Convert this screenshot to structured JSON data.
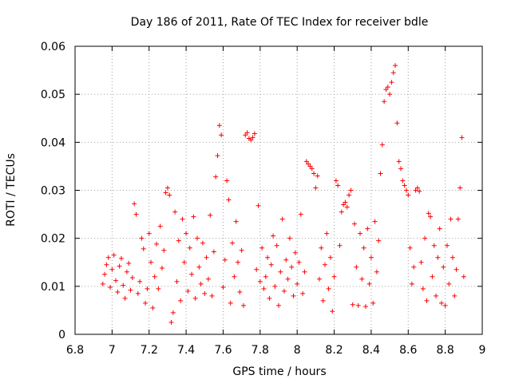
{
  "chart_data": {
    "type": "scatter",
    "title": "Day 186 of 2011, Rate Of TEC Index for receiver bdle",
    "xlabel": "GPS time / hours",
    "ylabel": "ROTI / TECUs",
    "xlim": [
      6.8,
      9.0
    ],
    "ylim": [
      0,
      0.06
    ],
    "xticks": [
      "6.8",
      "7",
      "7.2",
      "7.4",
      "7.6",
      "7.8",
      "8",
      "8.2",
      "8.4",
      "8.6",
      "8.8",
      "9"
    ],
    "xtick_values": [
      6.8,
      7.0,
      7.2,
      7.4,
      7.6,
      7.8,
      8.0,
      8.2,
      8.4,
      8.6,
      8.8,
      9.0
    ],
    "yticks": [
      "0",
      "0.01",
      "0.02",
      "0.03",
      "0.04",
      "0.05",
      "0.06"
    ],
    "ytick_values": [
      0,
      0.01,
      0.02,
      0.03,
      0.04,
      0.05,
      0.06
    ],
    "grid": true,
    "marker": "+",
    "color": "#ff0000",
    "series": [
      {
        "name": "ROTI",
        "points": [
          [
            6.95,
            0.0105
          ],
          [
            6.96,
            0.0125
          ],
          [
            6.97,
            0.0145
          ],
          [
            6.98,
            0.016
          ],
          [
            6.99,
            0.0098
          ],
          [
            7.0,
            0.0135
          ],
          [
            7.01,
            0.0165
          ],
          [
            7.02,
            0.0112
          ],
          [
            7.03,
            0.0088
          ],
          [
            7.04,
            0.0142
          ],
          [
            7.05,
            0.0158
          ],
          [
            7.06,
            0.0102
          ],
          [
            7.07,
            0.0075
          ],
          [
            7.08,
            0.013
          ],
          [
            7.09,
            0.0148
          ],
          [
            7.1,
            0.0092
          ],
          [
            7.11,
            0.0118
          ],
          [
            7.12,
            0.0272
          ],
          [
            7.13,
            0.025
          ],
          [
            7.14,
            0.0085
          ],
          [
            7.15,
            0.011
          ],
          [
            7.16,
            0.02
          ],
          [
            7.17,
            0.0178
          ],
          [
            7.18,
            0.0065
          ],
          [
            7.19,
            0.0095
          ],
          [
            7.2,
            0.021
          ],
          [
            7.21,
            0.015
          ],
          [
            7.22,
            0.0055
          ],
          [
            7.23,
            0.012
          ],
          [
            7.24,
            0.0188
          ],
          [
            7.25,
            0.0095
          ],
          [
            7.26,
            0.0225
          ],
          [
            7.27,
            0.0138
          ],
          [
            7.28,
            0.0175
          ],
          [
            7.29,
            0.0295
          ],
          [
            7.3,
            0.0305
          ],
          [
            7.31,
            0.029
          ],
          [
            7.32,
            0.0025
          ],
          [
            7.33,
            0.0045
          ],
          [
            7.34,
            0.0255
          ],
          [
            7.35,
            0.011
          ],
          [
            7.36,
            0.0195
          ],
          [
            7.37,
            0.007
          ],
          [
            7.38,
            0.024
          ],
          [
            7.39,
            0.015
          ],
          [
            7.4,
            0.021
          ],
          [
            7.41,
            0.009
          ],
          [
            7.42,
            0.018
          ],
          [
            7.43,
            0.0125
          ],
          [
            7.44,
            0.0245
          ],
          [
            7.45,
            0.0075
          ],
          [
            7.46,
            0.02
          ],
          [
            7.47,
            0.014
          ],
          [
            7.48,
            0.0105
          ],
          [
            7.49,
            0.019
          ],
          [
            7.5,
            0.0085
          ],
          [
            7.51,
            0.016
          ],
          [
            7.52,
            0.0115
          ],
          [
            7.53,
            0.0248
          ],
          [
            7.54,
            0.008
          ],
          [
            7.55,
            0.0172
          ],
          [
            7.56,
            0.0328
          ],
          [
            7.57,
            0.0372
          ],
          [
            7.58,
            0.0435
          ],
          [
            7.59,
            0.0415
          ],
          [
            7.6,
            0.0098
          ],
          [
            7.61,
            0.0155
          ],
          [
            7.62,
            0.032
          ],
          [
            7.63,
            0.028
          ],
          [
            7.64,
            0.0065
          ],
          [
            7.65,
            0.019
          ],
          [
            7.66,
            0.012
          ],
          [
            7.67,
            0.0235
          ],
          [
            7.68,
            0.015
          ],
          [
            7.69,
            0.0088
          ],
          [
            7.7,
            0.0175
          ],
          [
            7.71,
            0.006
          ],
          [
            7.72,
            0.0415
          ],
          [
            7.73,
            0.042
          ],
          [
            7.74,
            0.0408
          ],
          [
            7.75,
            0.0405
          ],
          [
            7.76,
            0.041
          ],
          [
            7.77,
            0.0418
          ],
          [
            7.78,
            0.0135
          ],
          [
            7.79,
            0.0268
          ],
          [
            7.8,
            0.011
          ],
          [
            7.81,
            0.018
          ],
          [
            7.82,
            0.0095
          ],
          [
            7.83,
            0.012
          ],
          [
            7.84,
            0.016
          ],
          [
            7.85,
            0.0075
          ],
          [
            7.86,
            0.0145
          ],
          [
            7.87,
            0.0205
          ],
          [
            7.88,
            0.01
          ],
          [
            7.89,
            0.0185
          ],
          [
            7.9,
            0.006
          ],
          [
            7.91,
            0.013
          ],
          [
            7.92,
            0.024
          ],
          [
            7.93,
            0.009
          ],
          [
            7.94,
            0.0155
          ],
          [
            7.95,
            0.0115
          ],
          [
            7.96,
            0.02
          ],
          [
            7.97,
            0.014
          ],
          [
            7.98,
            0.008
          ],
          [
            7.99,
            0.017
          ],
          [
            8.0,
            0.0105
          ],
          [
            8.01,
            0.015
          ],
          [
            8.02,
            0.025
          ],
          [
            8.03,
            0.0085
          ],
          [
            8.04,
            0.013
          ],
          [
            8.05,
            0.036
          ],
          [
            8.06,
            0.0355
          ],
          [
            8.07,
            0.035
          ],
          [
            8.08,
            0.0345
          ],
          [
            8.09,
            0.0335
          ],
          [
            8.1,
            0.0305
          ],
          [
            8.11,
            0.033
          ],
          [
            8.12,
            0.0115
          ],
          [
            8.13,
            0.018
          ],
          [
            8.14,
            0.007
          ],
          [
            8.15,
            0.0145
          ],
          [
            8.16,
            0.021
          ],
          [
            8.17,
            0.0095
          ],
          [
            8.18,
            0.016
          ],
          [
            8.19,
            0.0048
          ],
          [
            8.2,
            0.012
          ],
          [
            8.21,
            0.032
          ],
          [
            8.22,
            0.031
          ],
          [
            8.23,
            0.0185
          ],
          [
            8.24,
            0.0255
          ],
          [
            8.25,
            0.027
          ],
          [
            8.26,
            0.0275
          ],
          [
            8.27,
            0.0265
          ],
          [
            8.28,
            0.029
          ],
          [
            8.29,
            0.03
          ],
          [
            8.3,
            0.0062
          ],
          [
            8.31,
            0.023
          ],
          [
            8.32,
            0.014
          ],
          [
            8.33,
            0.006
          ],
          [
            8.34,
            0.021
          ],
          [
            8.35,
            0.0115
          ],
          [
            8.36,
            0.018
          ],
          [
            8.37,
            0.0058
          ],
          [
            8.38,
            0.022
          ],
          [
            8.39,
            0.0105
          ],
          [
            8.4,
            0.016
          ],
          [
            8.41,
            0.0065
          ],
          [
            8.42,
            0.0235
          ],
          [
            8.43,
            0.013
          ],
          [
            8.44,
            0.0195
          ],
          [
            8.45,
            0.0335
          ],
          [
            8.46,
            0.0395
          ],
          [
            8.47,
            0.0485
          ],
          [
            8.48,
            0.051
          ],
          [
            8.49,
            0.0515
          ],
          [
            8.5,
            0.05
          ],
          [
            8.51,
            0.0525
          ],
          [
            8.52,
            0.0545
          ],
          [
            8.53,
            0.056
          ],
          [
            8.54,
            0.044
          ],
          [
            8.55,
            0.036
          ],
          [
            8.56,
            0.0345
          ],
          [
            8.57,
            0.032
          ],
          [
            8.58,
            0.031
          ],
          [
            8.59,
            0.03
          ],
          [
            8.6,
            0.029
          ],
          [
            8.61,
            0.018
          ],
          [
            8.62,
            0.0105
          ],
          [
            8.63,
            0.014
          ],
          [
            8.64,
            0.03
          ],
          [
            8.65,
            0.0305
          ],
          [
            8.66,
            0.0298
          ],
          [
            8.67,
            0.015
          ],
          [
            8.68,
            0.0095
          ],
          [
            8.69,
            0.02
          ],
          [
            8.7,
            0.007
          ],
          [
            8.71,
            0.0252
          ],
          [
            8.72,
            0.0245
          ],
          [
            8.73,
            0.012
          ],
          [
            8.74,
            0.0185
          ],
          [
            8.75,
            0.008
          ],
          [
            8.76,
            0.016
          ],
          [
            8.77,
            0.022
          ],
          [
            8.78,
            0.0065
          ],
          [
            8.79,
            0.014
          ],
          [
            8.8,
            0.006
          ],
          [
            8.81,
            0.0185
          ],
          [
            8.82,
            0.0105
          ],
          [
            8.83,
            0.024
          ],
          [
            8.84,
            0.016
          ],
          [
            8.85,
            0.008
          ],
          [
            8.86,
            0.0135
          ],
          [
            8.87,
            0.024
          ],
          [
            8.88,
            0.0305
          ],
          [
            8.89,
            0.041
          ],
          [
            8.9,
            0.012
          ]
        ]
      }
    ]
  }
}
